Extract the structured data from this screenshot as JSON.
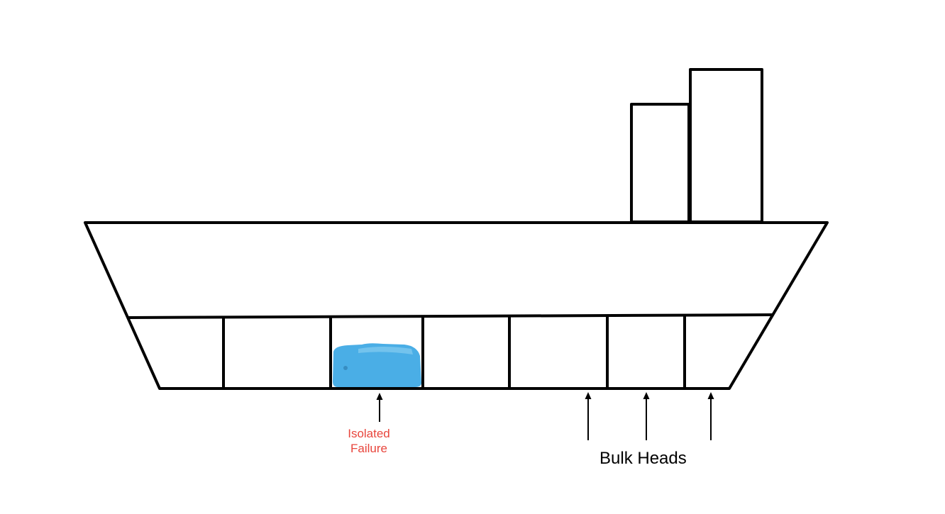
{
  "labels": {
    "failure_line1": "Isolated",
    "failure_line2": "Failure",
    "bulkheads": "Bulk Heads"
  },
  "colors": {
    "failure_text": "#e8453c",
    "water_fill": "#4aaee6",
    "water_highlight": "#8fd0f2",
    "outline": "#000000"
  },
  "compartments": {
    "count": 7,
    "flooded_index": 2
  }
}
